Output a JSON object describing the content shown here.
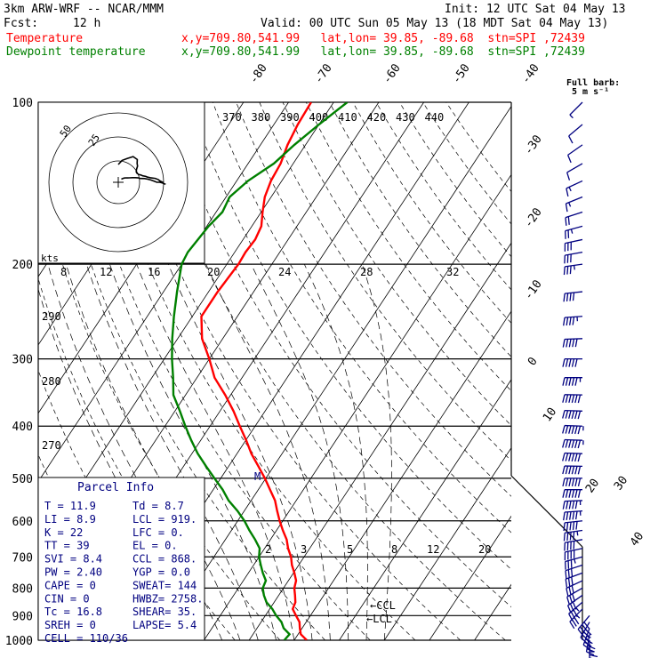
{
  "header": {
    "model": "3km ARW-WRF -- NCAR/MMM",
    "init": "Init: 12 UTC Sat 04 May 13",
    "fcst_label": "Fcst:",
    "fcst_value": "12 h",
    "valid": "Valid: 00 UTC Sun 05 May 13 (18 MDT Sat 04 May 13)",
    "temp_label": "Temperature",
    "dew_label": "Dewpoint temperature",
    "info_temp": "x,y=709.80,541.99   lat,lon= 39.85, -89.68  stn=SPI ,72439",
    "info_dew": "x,y=709.80,541.99   lat,lon= 39.85, -89.68  stn=SPI ,72439"
  },
  "colors": {
    "temperature": "#ff0000",
    "dewpoint": "#008000",
    "barbs": "#000080",
    "isobars": "#000000",
    "parcel_text": "#000080"
  },
  "wind_key": {
    "line1": "Full barb:",
    "line2": "5 m s⁻¹"
  },
  "hodograph": {
    "rings": [
      "25",
      "50"
    ],
    "units": "kts"
  },
  "parcel_info": {
    "title": "Parcel Info",
    "rows": [
      [
        "T  =    11.9",
        "Td =   8.7"
      ],
      [
        "LI =     8.9",
        "LCL =  919."
      ],
      [
        "K  =      22",
        "LFC =    0."
      ],
      [
        "TT =      39",
        "EL  =    0."
      ],
      [
        "SVI =    8.4",
        "CCL =  868."
      ],
      [
        "PW =    2.40",
        "YGP =   0.0"
      ],
      [
        "CAPE =     0",
        "SWEAT=  144"
      ],
      [
        "CIN =      0",
        "HWBZ= 2758."
      ],
      [
        "Tc =    16.8",
        "SHEAR=  35."
      ],
      [
        "SREH =     0",
        "LAPSE=  5.4"
      ],
      [
        "CELL = 110/36",
        ""
      ]
    ]
  },
  "chart_data": {
    "type": "line",
    "subtype": "skew-T log-p",
    "ylabel": "",
    "xlabel": "",
    "pressure_levels": [
      100,
      200,
      300,
      400,
      500,
      600,
      700,
      800,
      900,
      1000
    ],
    "isotherm_labels": [
      "-80",
      "-70",
      "-60",
      "-50",
      "-40",
      "-30",
      "-20",
      "-10",
      "0",
      "10",
      "20",
      "30",
      "40"
    ],
    "theta_e_labels": [
      "370",
      "380",
      "390",
      "400",
      "410",
      "420",
      "430",
      "440"
    ],
    "mixing_ratio_labels_upper": [
      "8",
      "12",
      "16",
      "20",
      "24",
      "28",
      "32"
    ],
    "dry_adiabat_labels": [
      "290",
      "280",
      "270"
    ],
    "mixing_ratio_labels_lower": [
      "2",
      "3",
      "5",
      "8",
      "12",
      "20"
    ],
    "ccl_label": "CCL",
    "lcl_label": "LCL",
    "m_label": "M",
    "series": [
      {
        "name": "Temperature",
        "p": [
          1000,
          975,
          950,
          925,
          900,
          875,
          850,
          825,
          800,
          775,
          750,
          725,
          700,
          675,
          650,
          625,
          600,
          575,
          550,
          525,
          500,
          475,
          450,
          425,
          400,
          375,
          350,
          325,
          300,
          275,
          250,
          225,
          200,
          190,
          180,
          170,
          160,
          150,
          140,
          130,
          120,
          110,
          100
        ],
        "t": [
          12.8,
          10.6,
          9.5,
          8.5,
          6.8,
          5.1,
          4.7,
          3.6,
          2.4,
          1.7,
          0.2,
          -1.5,
          -2.9,
          -4.8,
          -6.4,
          -8.6,
          -10.7,
          -12.7,
          -14.7,
          -17.4,
          -20.2,
          -23.4,
          -26.8,
          -29.9,
          -33.4,
          -37.0,
          -41.2,
          -46.1,
          -50.0,
          -54.6,
          -58.0,
          -58.0,
          -57.4,
          -57.6,
          -57.3,
          -57.9,
          -59.7,
          -61.4,
          -62.4,
          -62.8,
          -64.0,
          -64.7,
          -65.0
        ]
      },
      {
        "name": "Dewpoint temperature",
        "p": [
          1000,
          975,
          950,
          925,
          900,
          875,
          850,
          825,
          800,
          775,
          750,
          725,
          700,
          675,
          650,
          625,
          600,
          575,
          550,
          525,
          500,
          475,
          450,
          425,
          400,
          375,
          350,
          325,
          300,
          275,
          250,
          225,
          200,
          190,
          180,
          170,
          160,
          150,
          140,
          130,
          120,
          110,
          100
        ],
        "t": [
          7.8,
          8.1,
          5.9,
          4.5,
          2.4,
          0.6,
          -1.7,
          -3.3,
          -4.6,
          -5.0,
          -6.8,
          -8.4,
          -10.0,
          -11.1,
          -13.4,
          -16.0,
          -18.5,
          -21.5,
          -25.0,
          -27.9,
          -31.4,
          -35.0,
          -38.7,
          -42.1,
          -45.5,
          -48.9,
          -52.7,
          -55.3,
          -58.3,
          -61.2,
          -64.1,
          -67.0,
          -70.0,
          -70.4,
          -70.0,
          -69.6,
          -68.6,
          -69.2,
          -67.5,
          -64.3,
          -62.5,
          -60.0,
          -57.0
        ]
      }
    ],
    "winds": {
      "p": [
        1000,
        975,
        950,
        925,
        900,
        875,
        850,
        825,
        800,
        775,
        750,
        725,
        700,
        675,
        650,
        625,
        600,
        575,
        550,
        525,
        500,
        475,
        450,
        425,
        400,
        375,
        350,
        325,
        300,
        275,
        250,
        225,
        200,
        190,
        180,
        170,
        160,
        150,
        140,
        130,
        120,
        110,
        100
      ],
      "speed_ms": [
        12,
        15,
        17,
        20,
        20,
        18,
        17,
        15,
        14,
        14,
        15,
        16,
        17,
        19,
        20,
        22,
        25,
        27,
        28,
        30,
        30,
        30,
        31,
        32,
        32,
        31,
        30,
        28,
        26,
        24,
        22,
        20,
        18,
        15,
        14,
        12,
        10,
        8,
        7,
        6,
        5,
        4,
        3
      ],
      "direction_deg": [
        180,
        190,
        200,
        210,
        220,
        225,
        230,
        235,
        240,
        245,
        250,
        252,
        255,
        258,
        260,
        262,
        264,
        266,
        268,
        270,
        270,
        271,
        272,
        272,
        272,
        272,
        271,
        270,
        270,
        268,
        266,
        264,
        262,
        260,
        258,
        255,
        252,
        248,
        245,
        240,
        235,
        230,
        225
      ]
    }
  }
}
